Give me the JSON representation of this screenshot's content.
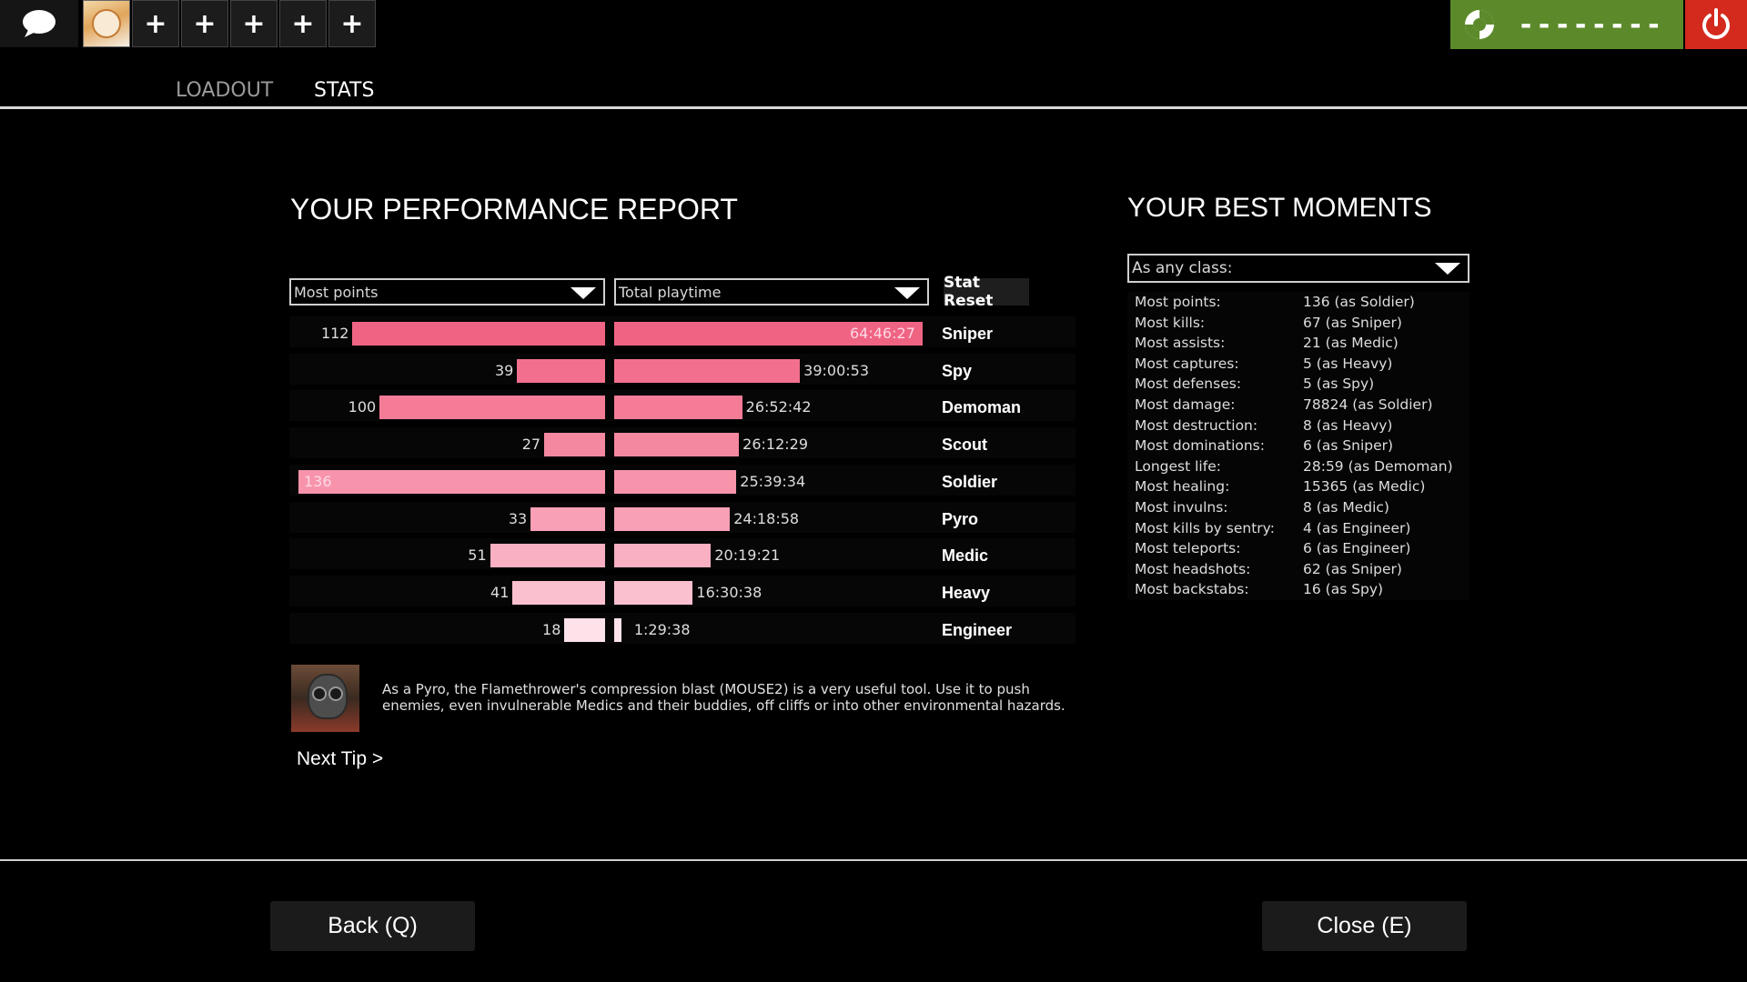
{
  "topbar": {
    "chat_icon": "speech-bubble-icon",
    "slot_glyph": "+",
    "status_dashes": "--------",
    "status_color": "#5c8a2a",
    "power_color": "#d42a1d"
  },
  "tabs": {
    "loadout": "LOADOUT",
    "stats": "STATS"
  },
  "report": {
    "title": "YOUR PERFORMANCE REPORT",
    "points_dropdown": "Most points",
    "playtime_dropdown": "Total playtime",
    "stat_reset": "Stat Reset",
    "max_points": 136,
    "max_playtime_seconds": 233187,
    "classes": [
      {
        "name": "Sniper",
        "points": 112,
        "points_label": "112",
        "playtime_seconds": 233187,
        "playtime": "64:46:27",
        "color": "#f06483"
      },
      {
        "name": "Spy",
        "points": 39,
        "points_label": "39",
        "playtime_seconds": 140453,
        "playtime": "39:00:53",
        "color": "#f2708d"
      },
      {
        "name": "Demoman",
        "points": 100,
        "points_label": "100",
        "playtime_seconds": 96762,
        "playtime": "26:52:42",
        "color": "#f47c97"
      },
      {
        "name": "Scout",
        "points": 27,
        "points_label": "27",
        "playtime_seconds": 94349,
        "playtime": "26:12:29",
        "color": "#f588a1"
      },
      {
        "name": "Soldier",
        "points": 136,
        "points_label": "136",
        "playtime_seconds": 92374,
        "playtime": "25:39:34",
        "color": "#f794ab"
      },
      {
        "name": "Pyro",
        "points": 33,
        "points_label": "33",
        "playtime_seconds": 87538,
        "playtime": "24:18:58",
        "color": "#f8a0b5"
      },
      {
        "name": "Medic",
        "points": 51,
        "points_label": "51",
        "playtime_seconds": 73161,
        "playtime": "20:19:21",
        "color": "#f9b0c2"
      },
      {
        "name": "Heavy",
        "points": 41,
        "points_label": "41",
        "playtime_seconds": 59438,
        "playtime": "16:30:38",
        "color": "#fbc0cf"
      },
      {
        "name": "Engineer",
        "points": 18,
        "points_label": "18",
        "playtime_seconds": 5378,
        "playtime": "1:29:38",
        "color": "#fde2ea"
      }
    ]
  },
  "moments": {
    "title": "YOUR BEST MOMENTS",
    "class_dropdown": "As any class:",
    "rows": [
      {
        "label": "Most points:",
        "value": "136 (as Soldier)"
      },
      {
        "label": "Most kills:",
        "value": "67 (as Sniper)"
      },
      {
        "label": "Most assists:",
        "value": "21 (as Medic)"
      },
      {
        "label": "Most captures:",
        "value": "5 (as Heavy)"
      },
      {
        "label": "Most defenses:",
        "value": "5 (as Spy)"
      },
      {
        "label": "Most damage:",
        "value": "78824 (as Soldier)"
      },
      {
        "label": "Most destruction:",
        "value": "8 (as Heavy)"
      },
      {
        "label": "Most dominations:",
        "value": "6 (as Sniper)"
      },
      {
        "label": "Longest life:",
        "value": "28:59 (as Demoman)"
      },
      {
        "label": "Most healing:",
        "value": "15365 (as Medic)"
      },
      {
        "label": "Most invulns:",
        "value": "8 (as Medic)"
      },
      {
        "label": "Most kills by sentry:",
        "value": "4 (as Engineer)"
      },
      {
        "label": "Most teleports:",
        "value": "6 (as Engineer)"
      },
      {
        "label": "Most headshots:",
        "value": "62 (as Sniper)"
      },
      {
        "label": "Most backstabs:",
        "value": "16 (as Spy)"
      }
    ]
  },
  "tip": {
    "text": "As a Pyro, the Flamethrower's compression blast (MOUSE2) is a very useful tool. Use it to push enemies, even invulnerable Medics and their buddies, off cliffs or into other environmental hazards.",
    "next": "Next Tip >"
  },
  "footer": {
    "back": "Back (Q)",
    "close": "Close (E)"
  }
}
